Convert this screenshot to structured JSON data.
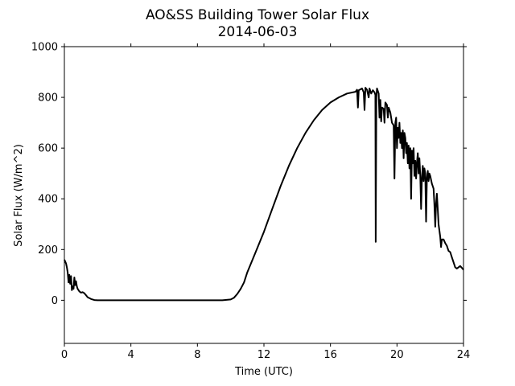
{
  "chart_data": {
    "type": "line",
    "title": "AO&SS Building Tower Solar Flux",
    "subtitle": "2014-06-03",
    "xlabel": "Time (UTC)",
    "ylabel": "Solar Flux (W/m^2)",
    "xlim": [
      0,
      24
    ],
    "ylim": [
      -170,
      1000
    ],
    "xticks": [
      0,
      4,
      8,
      12,
      16,
      20,
      24
    ],
    "yticks": [
      0,
      200,
      400,
      600,
      800,
      1000
    ],
    "grid": false,
    "series": [
      {
        "color": "#000000",
        "points": [
          [
            0.0,
            160
          ],
          [
            0.1,
            145
          ],
          [
            0.15,
            130
          ],
          [
            0.2,
            110
          ],
          [
            0.25,
            70
          ],
          [
            0.3,
            100
          ],
          [
            0.35,
            65
          ],
          [
            0.4,
            95
          ],
          [
            0.45,
            40
          ],
          [
            0.5,
            55
          ],
          [
            0.55,
            45
          ],
          [
            0.6,
            90
          ],
          [
            0.65,
            60
          ],
          [
            0.7,
            75
          ],
          [
            0.75,
            55
          ],
          [
            0.8,
            45
          ],
          [
            0.9,
            35
          ],
          [
            1.0,
            30
          ],
          [
            1.1,
            32
          ],
          [
            1.2,
            28
          ],
          [
            1.3,
            20
          ],
          [
            1.4,
            12
          ],
          [
            1.6,
            5
          ],
          [
            1.8,
            1
          ],
          [
            2.0,
            0
          ],
          [
            3.0,
            0
          ],
          [
            4.0,
            0
          ],
          [
            5.0,
            0
          ],
          [
            6.0,
            0
          ],
          [
            7.0,
            0
          ],
          [
            8.0,
            0
          ],
          [
            9.0,
            0
          ],
          [
            9.5,
            0
          ],
          [
            10.0,
            3
          ],
          [
            10.2,
            10
          ],
          [
            10.4,
            25
          ],
          [
            10.6,
            45
          ],
          [
            10.8,
            70
          ],
          [
            11.0,
            110
          ],
          [
            11.5,
            190
          ],
          [
            12.0,
            270
          ],
          [
            12.5,
            360
          ],
          [
            13.0,
            450
          ],
          [
            13.5,
            530
          ],
          [
            14.0,
            600
          ],
          [
            14.5,
            660
          ],
          [
            15.0,
            710
          ],
          [
            15.5,
            750
          ],
          [
            16.0,
            780
          ],
          [
            16.5,
            800
          ],
          [
            17.0,
            815
          ],
          [
            17.5,
            822
          ],
          [
            17.6,
            830
          ],
          [
            17.65,
            760
          ],
          [
            17.7,
            828
          ],
          [
            17.9,
            835
          ],
          [
            18.0,
            820
          ],
          [
            18.05,
            750
          ],
          [
            18.1,
            838
          ],
          [
            18.2,
            830
          ],
          [
            18.3,
            800
          ],
          [
            18.35,
            835
          ],
          [
            18.45,
            815
          ],
          [
            18.55,
            828
          ],
          [
            18.65,
            820
          ],
          [
            18.7,
            810
          ],
          [
            18.72,
            230
          ],
          [
            18.76,
            800
          ],
          [
            18.8,
            835
          ],
          [
            18.9,
            815
          ],
          [
            18.95,
            720
          ],
          [
            19.0,
            790
          ],
          [
            19.05,
            705
          ],
          [
            19.1,
            760
          ],
          [
            19.2,
            755
          ],
          [
            19.25,
            700
          ],
          [
            19.3,
            780
          ],
          [
            19.4,
            770
          ],
          [
            19.45,
            720
          ],
          [
            19.5,
            760
          ],
          [
            19.6,
            740
          ],
          [
            19.7,
            700
          ],
          [
            19.8,
            690
          ],
          [
            19.85,
            480
          ],
          [
            19.9,
            700
          ],
          [
            19.95,
            720
          ],
          [
            20.0,
            600
          ],
          [
            20.05,
            680
          ],
          [
            20.1,
            640
          ],
          [
            20.15,
            700
          ],
          [
            20.2,
            620
          ],
          [
            20.25,
            660
          ],
          [
            20.3,
            600
          ],
          [
            20.35,
            670
          ],
          [
            20.4,
            560
          ],
          [
            20.45,
            660
          ],
          [
            20.5,
            640
          ],
          [
            20.55,
            580
          ],
          [
            20.6,
            620
          ],
          [
            20.65,
            540
          ],
          [
            20.7,
            610
          ],
          [
            20.75,
            520
          ],
          [
            20.8,
            600
          ],
          [
            20.85,
            400
          ],
          [
            20.9,
            590
          ],
          [
            20.95,
            540
          ],
          [
            21.0,
            600
          ],
          [
            21.05,
            490
          ],
          [
            21.1,
            550
          ],
          [
            21.15,
            480
          ],
          [
            21.2,
            540
          ],
          [
            21.25,
            580
          ],
          [
            21.3,
            500
          ],
          [
            21.35,
            560
          ],
          [
            21.4,
            490
          ],
          [
            21.45,
            360
          ],
          [
            21.5,
            480
          ],
          [
            21.55,
            530
          ],
          [
            21.6,
            470
          ],
          [
            21.65,
            520
          ],
          [
            21.7,
            500
          ],
          [
            21.75,
            310
          ],
          [
            21.8,
            480
          ],
          [
            21.85,
            510
          ],
          [
            21.9,
            470
          ],
          [
            21.95,
            500
          ],
          [
            22.0,
            490
          ],
          [
            22.1,
            460
          ],
          [
            22.2,
            440
          ],
          [
            22.25,
            380
          ],
          [
            22.3,
            290
          ],
          [
            22.35,
            380
          ],
          [
            22.4,
            420
          ],
          [
            22.45,
            360
          ],
          [
            22.5,
            300
          ],
          [
            22.6,
            250
          ],
          [
            22.65,
            210
          ],
          [
            22.7,
            240
          ],
          [
            22.8,
            240
          ],
          [
            22.9,
            225
          ],
          [
            23.0,
            215
          ],
          [
            23.1,
            195
          ],
          [
            23.2,
            190
          ],
          [
            23.3,
            170
          ],
          [
            23.4,
            150
          ],
          [
            23.5,
            130
          ],
          [
            23.6,
            125
          ],
          [
            23.7,
            130
          ],
          [
            23.8,
            135
          ],
          [
            23.9,
            128
          ],
          [
            24.0,
            120
          ]
        ]
      }
    ]
  }
}
